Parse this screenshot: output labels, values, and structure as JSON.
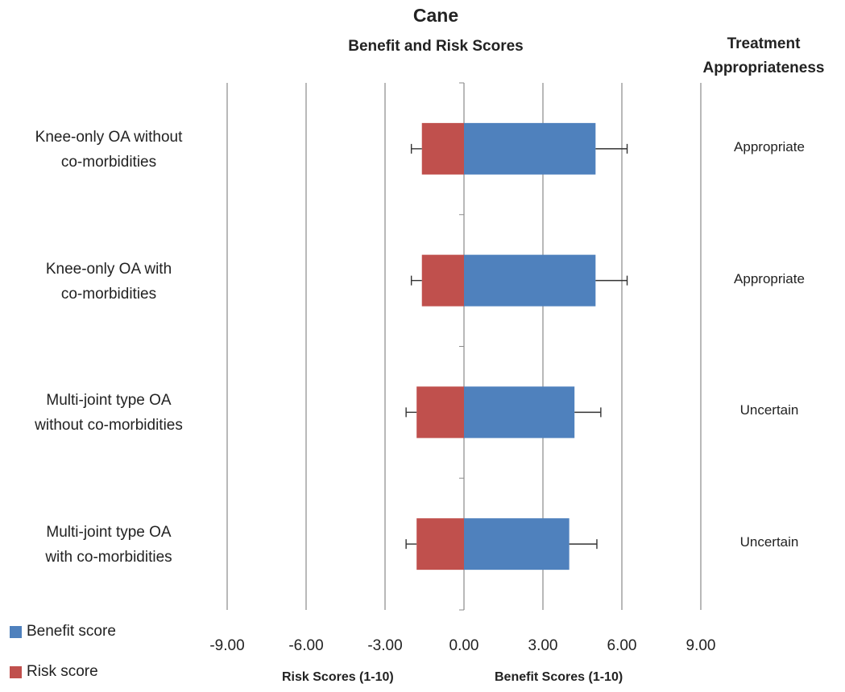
{
  "chart_data": {
    "type": "bar",
    "orientation": "horizontal",
    "title": "Cane",
    "subtitle": "Benefit and Risk Scores",
    "right_header": "Treatment Appropriateness",
    "categories": [
      {
        "line1": "Knee-only OA without",
        "line2": "co-morbidities",
        "appropriateness": "Appropriate"
      },
      {
        "line1": "Knee-only OA with",
        "line2": "co-morbidities",
        "appropriateness": "Appropriate"
      },
      {
        "line1": "Multi-joint type OA",
        "line2": "without co-morbidities",
        "appropriateness": "Uncertain"
      },
      {
        "line1": "Multi-joint type OA",
        "line2": "with co-morbidities",
        "appropriateness": "Uncertain"
      }
    ],
    "series": [
      {
        "name": "Benefit score",
        "color": "#4F81BD",
        "values": [
          5.0,
          5.0,
          4.2,
          4.0
        ],
        "error": [
          1.2,
          1.2,
          1.0,
          1.05
        ]
      },
      {
        "name": "Risk score",
        "color": "#C0504D",
        "values": [
          -1.6,
          -1.6,
          -1.8,
          -1.8
        ],
        "error": [
          0.4,
          0.4,
          0.4,
          0.4
        ]
      }
    ],
    "xlim": [
      -9,
      9
    ],
    "xticks": [
      -9,
      -6,
      -3,
      0,
      3,
      6,
      9
    ],
    "xtick_labels": [
      "-9.00",
      "-6.00",
      "-3.00",
      "0.00",
      "3.00",
      "6.00",
      "9.00"
    ],
    "xlabel_left": "Risk  Scores (1-10)",
    "xlabel_right": "Benefit Scores (1-10)",
    "grid": true,
    "legend_position": "bottom-left"
  }
}
